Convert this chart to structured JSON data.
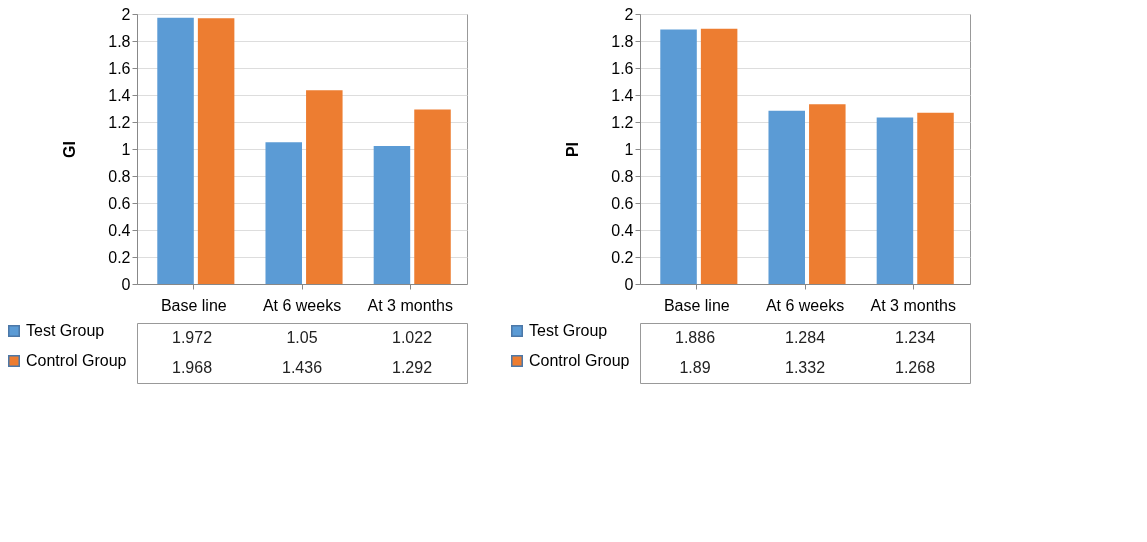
{
  "chart_data": [
    {
      "type": "bar",
      "ylabel": "GI",
      "categories": [
        "Base line",
        "At 6 weeks",
        "At 3 months"
      ],
      "series": [
        {
          "name": "Test Group",
          "color": "#5b9bd5",
          "values": [
            1.972,
            1.05,
            1.022
          ]
        },
        {
          "name": "Control Group",
          "color": "#ed7d31",
          "values": [
            1.968,
            1.436,
            1.292
          ]
        }
      ],
      "ylim": [
        0,
        2
      ],
      "yticks": [
        0,
        0.2,
        0.4,
        0.6,
        0.8,
        1,
        1.2,
        1.4,
        1.6,
        1.8,
        2
      ],
      "grid": "y",
      "legend": "bottom",
      "data_labels": true
    },
    {
      "type": "bar",
      "ylabel": "PI",
      "categories": [
        "Base line",
        "At 6 weeks",
        "At 3 months"
      ],
      "series": [
        {
          "name": "Test Group",
          "color": "#5b9bd5",
          "values": [
            1.886,
            1.284,
            1.234
          ]
        },
        {
          "name": "Control Group",
          "color": "#ed7d31",
          "values": [
            1.89,
            1.332,
            1.268
          ]
        }
      ],
      "ylim": [
        0,
        2
      ],
      "yticks": [
        0,
        0.2,
        0.4,
        0.6,
        0.8,
        1,
        1.2,
        1.4,
        1.6,
        1.8,
        2
      ],
      "grid": "y",
      "legend": "bottom",
      "data_labels": true
    }
  ]
}
